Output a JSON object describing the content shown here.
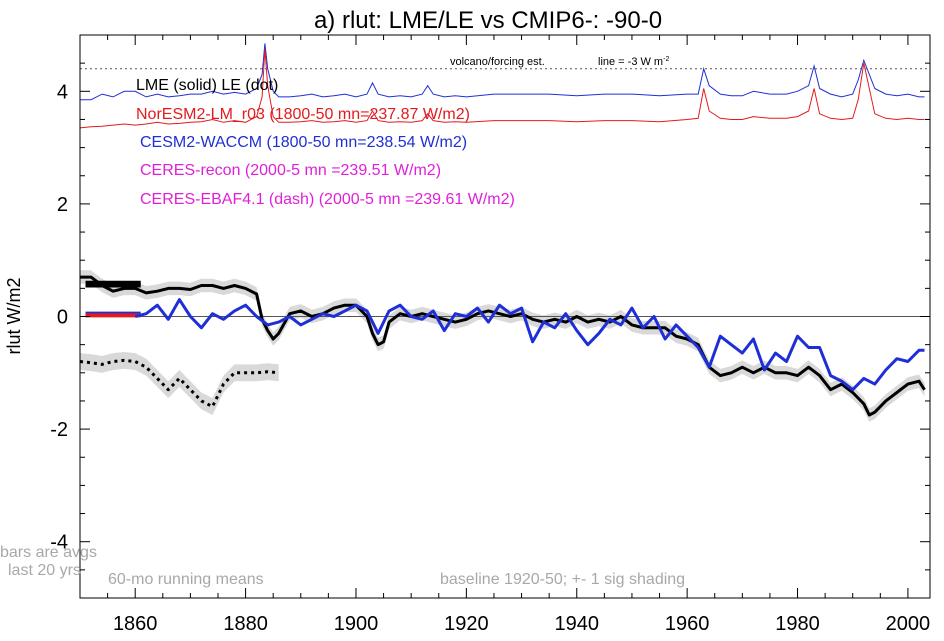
{
  "chart_data": {
    "type": "line",
    "title": "a) rlut: LME/LE vs CMIP6-: -90-0",
    "ylabel": "rlut W/m2",
    "xlabel": "",
    "xlim": [
      1850,
      2004
    ],
    "ylim": [
      -5,
      5
    ],
    "x_ticks": [
      1860,
      1880,
      1900,
      1920,
      1940,
      1960,
      1980,
      2000
    ],
    "y_ticks": [
      4,
      2,
      0,
      -2,
      -4
    ],
    "grid": false,
    "legend": [
      {
        "text": "LME (solid)   LE (dot)",
        "color": "#000000"
      },
      {
        "text": "NorESM2-LM_r03 (1800-50 mn=237.87 W/m2)",
        "color": "#e41a1c"
      },
      {
        "text": "CESM2-WACCM (1800-50 mn=238.54 W/m2)",
        "color": "#1f2fd6"
      },
      {
        "text": "CERES-recon (2000-5 mn =239.51 W/m2)",
        "color": "#e020d8"
      },
      {
        "text": "CERES-EBAF4.1 (dash) (2000-5 mn =239.61 W/m2)",
        "color": "#e020d8"
      }
    ],
    "volcano_note": {
      "label": "volcano/forcing est.",
      "line_label": "line = -3 W m",
      "exponent": "-2",
      "level": 4.4
    },
    "footnotes": {
      "bars_line1": "bars are avgs",
      "bars_line2": "last 20 yrs",
      "running": "60-mo running means",
      "baseline": "baseline 1920-50; +- 1 sig shading"
    },
    "series": [
      {
        "name": "LME (solid)",
        "color": "#000000",
        "x": [
          1850,
          1852,
          1854,
          1856,
          1858,
          1860,
          1862,
          1864,
          1866,
          1868,
          1870,
          1872,
          1874,
          1876,
          1878,
          1880,
          1882,
          1883,
          1884,
          1885,
          1886,
          1888,
          1890,
          1892,
          1894,
          1896,
          1898,
          1900,
          1902,
          1903,
          1904,
          1905,
          1906,
          1908,
          1910,
          1912,
          1914,
          1916,
          1918,
          1920,
          1922,
          1924,
          1926,
          1928,
          1930,
          1932,
          1934,
          1936,
          1938,
          1940,
          1942,
          1944,
          1946,
          1948,
          1950,
          1952,
          1954,
          1956,
          1958,
          1960,
          1962,
          1963,
          1964,
          1966,
          1968,
          1970,
          1972,
          1974,
          1976,
          1978,
          1980,
          1982,
          1984,
          1986,
          1988,
          1990,
          1992,
          1993,
          1994,
          1996,
          1998,
          2000,
          2002,
          2003
        ],
        "y": [
          0.7,
          0.7,
          0.55,
          0.45,
          0.5,
          0.5,
          0.42,
          0.45,
          0.5,
          0.5,
          0.48,
          0.55,
          0.55,
          0.5,
          0.55,
          0.5,
          0.4,
          -0.05,
          -0.25,
          -0.4,
          -0.3,
          0.05,
          0.1,
          0.0,
          0.05,
          0.15,
          0.2,
          0.2,
          0.0,
          -0.3,
          -0.5,
          -0.45,
          -0.1,
          0.05,
          0.0,
          0.05,
          0.0,
          -0.05,
          -0.1,
          -0.05,
          0.05,
          0.1,
          0.05,
          0.0,
          0.05,
          -0.05,
          -0.1,
          -0.05,
          -0.1,
          0.0,
          -0.1,
          -0.05,
          -0.1,
          0.0,
          -0.15,
          -0.2,
          -0.2,
          -0.2,
          -0.35,
          -0.4,
          -0.5,
          -0.7,
          -0.9,
          -1.05,
          -1.0,
          -0.9,
          -1.0,
          -0.9,
          -1.0,
          -1.0,
          -1.05,
          -0.9,
          -1.05,
          -1.3,
          -1.2,
          -1.35,
          -1.55,
          -1.75,
          -1.7,
          -1.5,
          -1.35,
          -1.2,
          -1.15,
          -1.3
        ]
      },
      {
        "name": "CESM2-WACCM",
        "color": "#1f2fd6",
        "x": [
          1860,
          1862,
          1864,
          1866,
          1868,
          1870,
          1872,
          1874,
          1876,
          1878,
          1880,
          1882,
          1884,
          1886,
          1888,
          1890,
          1892,
          1894,
          1896,
          1898,
          1900,
          1902,
          1904,
          1906,
          1908,
          1910,
          1912,
          1914,
          1916,
          1918,
          1920,
          1922,
          1924,
          1926,
          1928,
          1930,
          1932,
          1934,
          1936,
          1938,
          1940,
          1942,
          1944,
          1946,
          1948,
          1950,
          1952,
          1954,
          1956,
          1958,
          1960,
          1962,
          1964,
          1966,
          1968,
          1970,
          1972,
          1974,
          1976,
          1978,
          1980,
          1982,
          1984,
          1986,
          1988,
          1990,
          1992,
          1994,
          1996,
          1998,
          2000,
          2002,
          2003
        ],
        "y": [
          0.0,
          0.05,
          0.2,
          -0.05,
          0.3,
          0.0,
          -0.2,
          0.05,
          -0.05,
          0.1,
          0.2,
          0.0,
          -0.15,
          -0.1,
          0.0,
          -0.15,
          -0.05,
          0.05,
          0.0,
          0.1,
          0.2,
          0.1,
          -0.3,
          0.1,
          0.2,
          0.0,
          -0.05,
          0.1,
          -0.25,
          0.05,
          0.0,
          0.15,
          -0.1,
          0.2,
          0.05,
          0.15,
          -0.45,
          -0.1,
          -0.2,
          0.05,
          -0.25,
          -0.5,
          -0.3,
          -0.05,
          -0.15,
          0.15,
          -0.2,
          0.0,
          -0.4,
          -0.15,
          -0.35,
          -0.55,
          -0.9,
          -0.35,
          -0.5,
          -0.65,
          -0.4,
          -0.95,
          -0.65,
          -0.8,
          -0.35,
          -0.55,
          -0.55,
          -1.05,
          -1.15,
          -1.3,
          -1.1,
          -1.2,
          -0.95,
          -0.75,
          -0.8,
          -0.6,
          -0.6
        ]
      },
      {
        "name": "LE (dot)",
        "color": "#000000",
        "dotted": true,
        "x": [
          1850,
          1852,
          1854,
          1856,
          1858,
          1860,
          1862,
          1864,
          1866,
          1868,
          1870,
          1872,
          1874,
          1876,
          1878,
          1880,
          1882,
          1884,
          1886
        ],
        "y": [
          -0.8,
          -0.82,
          -0.85,
          -0.8,
          -0.78,
          -0.8,
          -0.9,
          -1.1,
          -1.3,
          -1.1,
          -1.3,
          -1.5,
          -1.6,
          -1.2,
          -1.0,
          -1.0,
          -1.0,
          -0.98,
          -1.0
        ]
      },
      {
        "name": "CESM2-WACCM volcano/forcing",
        "color": "#1f2fd6",
        "thin": true,
        "x": [
          1850,
          1852,
          1854,
          1856,
          1858,
          1860,
          1862,
          1864,
          1866,
          1868,
          1870,
          1872,
          1874,
          1876,
          1878,
          1880,
          1882,
          1883,
          1883.5,
          1884,
          1885,
          1886,
          1888,
          1890,
          1892,
          1894,
          1896,
          1898,
          1900,
          1902,
          1903,
          1904,
          1906,
          1908,
          1910,
          1912,
          1913,
          1914,
          1916,
          1918,
          1920,
          1925,
          1930,
          1935,
          1940,
          1945,
          1950,
          1955,
          1960,
          1962,
          1963,
          1964,
          1966,
          1968,
          1970,
          1972,
          1975,
          1978,
          1980,
          1982,
          1983,
          1984,
          1986,
          1988,
          1990,
          1991,
          1992,
          1994,
          1996,
          1998,
          2000,
          2002,
          2003
        ],
        "y": [
          3.85,
          3.85,
          3.95,
          3.9,
          4.0,
          4.0,
          3.9,
          3.95,
          3.9,
          3.92,
          3.95,
          3.95,
          4.0,
          3.95,
          3.98,
          3.95,
          4.05,
          4.3,
          4.85,
          4.4,
          4.0,
          3.9,
          3.9,
          3.92,
          3.95,
          3.9,
          3.92,
          3.95,
          3.9,
          3.95,
          4.15,
          3.95,
          3.9,
          3.92,
          3.9,
          3.95,
          4.1,
          3.95,
          3.9,
          3.92,
          3.9,
          3.95,
          3.95,
          3.95,
          3.92,
          3.95,
          3.95,
          3.92,
          3.95,
          3.95,
          4.4,
          4.1,
          3.95,
          3.92,
          3.92,
          4.0,
          3.95,
          3.95,
          4.0,
          4.1,
          4.45,
          4.05,
          3.95,
          3.9,
          3.95,
          4.2,
          4.55,
          4.05,
          3.95,
          3.92,
          3.95,
          3.9,
          3.9
        ]
      },
      {
        "name": "NorESM2-LM volcano/forcing",
        "color": "#e41a1c",
        "thin": true,
        "x": [
          1850,
          1852,
          1854,
          1856,
          1858,
          1860,
          1862,
          1864,
          1866,
          1868,
          1870,
          1872,
          1874,
          1876,
          1878,
          1880,
          1882,
          1883,
          1883.5,
          1884,
          1885,
          1886,
          1888,
          1890,
          1892,
          1894,
          1896,
          1898,
          1900,
          1902,
          1903,
          1904,
          1906,
          1908,
          1910,
          1912,
          1913,
          1914,
          1916,
          1918,
          1920,
          1925,
          1930,
          1935,
          1940,
          1945,
          1950,
          1955,
          1960,
          1962,
          1963,
          1964,
          1966,
          1968,
          1970,
          1972,
          1975,
          1978,
          1980,
          1982,
          1983,
          1984,
          1986,
          1988,
          1990,
          1991,
          1992,
          1994,
          1996,
          1998,
          2000,
          2002,
          2003
        ],
        "y": [
          3.35,
          3.37,
          3.38,
          3.4,
          3.42,
          3.4,
          3.42,
          3.45,
          3.42,
          3.43,
          3.45,
          3.46,
          3.5,
          3.45,
          3.48,
          3.45,
          3.55,
          3.9,
          4.75,
          4.1,
          3.55,
          3.45,
          3.45,
          3.46,
          3.48,
          3.45,
          3.46,
          3.48,
          3.45,
          3.48,
          3.65,
          3.48,
          3.45,
          3.46,
          3.45,
          3.48,
          3.6,
          3.48,
          3.45,
          3.46,
          3.45,
          3.48,
          3.48,
          3.48,
          3.46,
          3.48,
          3.48,
          3.46,
          3.5,
          3.52,
          4.05,
          3.65,
          3.52,
          3.5,
          3.5,
          3.55,
          3.52,
          3.52,
          3.55,
          3.65,
          4.05,
          3.6,
          3.52,
          3.5,
          3.52,
          3.85,
          4.5,
          3.6,
          3.52,
          3.5,
          3.52,
          3.5,
          3.5
        ]
      }
    ]
  }
}
